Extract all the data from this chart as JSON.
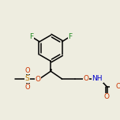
{
  "bg_color": "#eeede0",
  "bond_color": "#000000",
  "F_color": "#228b22",
  "O_color": "#cc3300",
  "N_color": "#0000cc",
  "S_color": "#bb7700",
  "line_width": 1.1,
  "font_size": 6.5,
  "figsize": [
    1.52,
    1.52
  ],
  "dpi": 100,
  "xlim": [
    0,
    10
  ],
  "ylim": [
    0,
    10
  ]
}
